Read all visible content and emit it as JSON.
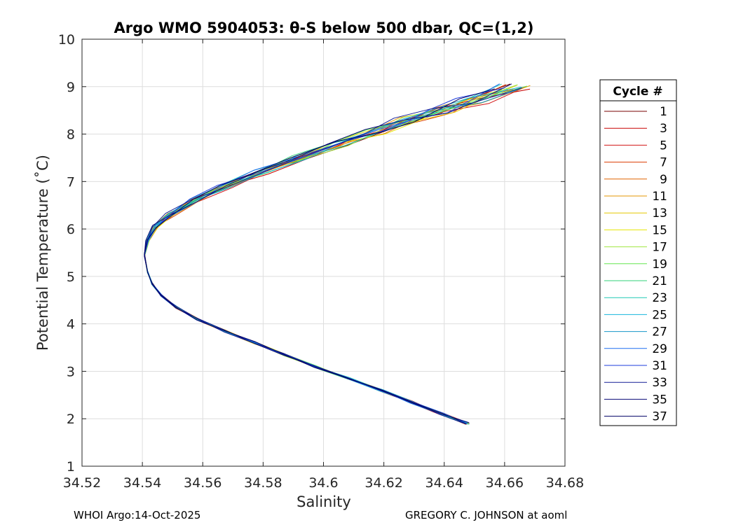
{
  "chart_data": {
    "type": "line",
    "title": "Argo WMO 5904053: θ-S below 500 dbar,  QC=(1,2)",
    "xlabel": "Salinity",
    "ylabel": "Potential Temperature (˚C)",
    "xlim": [
      34.52,
      34.68
    ],
    "ylim": [
      1,
      10
    ],
    "xticks": [
      "34.52",
      "34.54",
      "34.56",
      "34.58",
      "34.6",
      "34.62",
      "34.64",
      "34.66",
      "34.68"
    ],
    "yticks": [
      "1",
      "2",
      "3",
      "4",
      "5",
      "6",
      "7",
      "8",
      "9",
      "10"
    ],
    "grid": true,
    "legend_title": "Cycle #",
    "legend_placement": "outside-right",
    "legend_entries": [
      "1",
      "3",
      "5",
      "7",
      "9",
      "11",
      "13",
      "15",
      "17",
      "19",
      "21",
      "23",
      "25",
      "27",
      "29",
      "31",
      "33",
      "35",
      "37"
    ],
    "legend_colors": [
      "#7a0000",
      "#c80000",
      "#d21414",
      "#dc3c00",
      "#e06400",
      "#e69600",
      "#e6c800",
      "#e6e600",
      "#a0e640",
      "#64e650",
      "#32d278",
      "#1ec8b4",
      "#14b4dc",
      "#1496c8",
      "#1e6ef0",
      "#1e3cdc",
      "#141e96",
      "#0a0a78",
      "#000064"
    ],
    "representative_profile": {
      "salinity": [
        34.6465,
        34.638,
        34.628,
        34.618,
        34.607,
        34.596,
        34.586,
        34.576,
        34.566,
        34.557,
        34.55,
        34.545,
        34.542,
        34.5405,
        34.5395,
        34.5405,
        34.543,
        34.548,
        34.556,
        34.566,
        34.578,
        34.591,
        34.604,
        34.616,
        34.627,
        34.638,
        34.648,
        34.662
      ],
      "theta": [
        1.9,
        2.1,
        2.35,
        2.6,
        2.85,
        3.1,
        3.35,
        3.6,
        3.85,
        4.1,
        4.35,
        4.6,
        4.85,
        5.1,
        5.45,
        5.75,
        6.05,
        6.3,
        6.6,
        6.9,
        7.2,
        7.5,
        7.8,
        8.05,
        8.3,
        8.5,
        8.7,
        9.0
      ]
    }
  },
  "footer": {
    "left": "WHOI Argo:14-Oct-2025",
    "right": "GREGORY C. JOHNSON at aoml"
  }
}
